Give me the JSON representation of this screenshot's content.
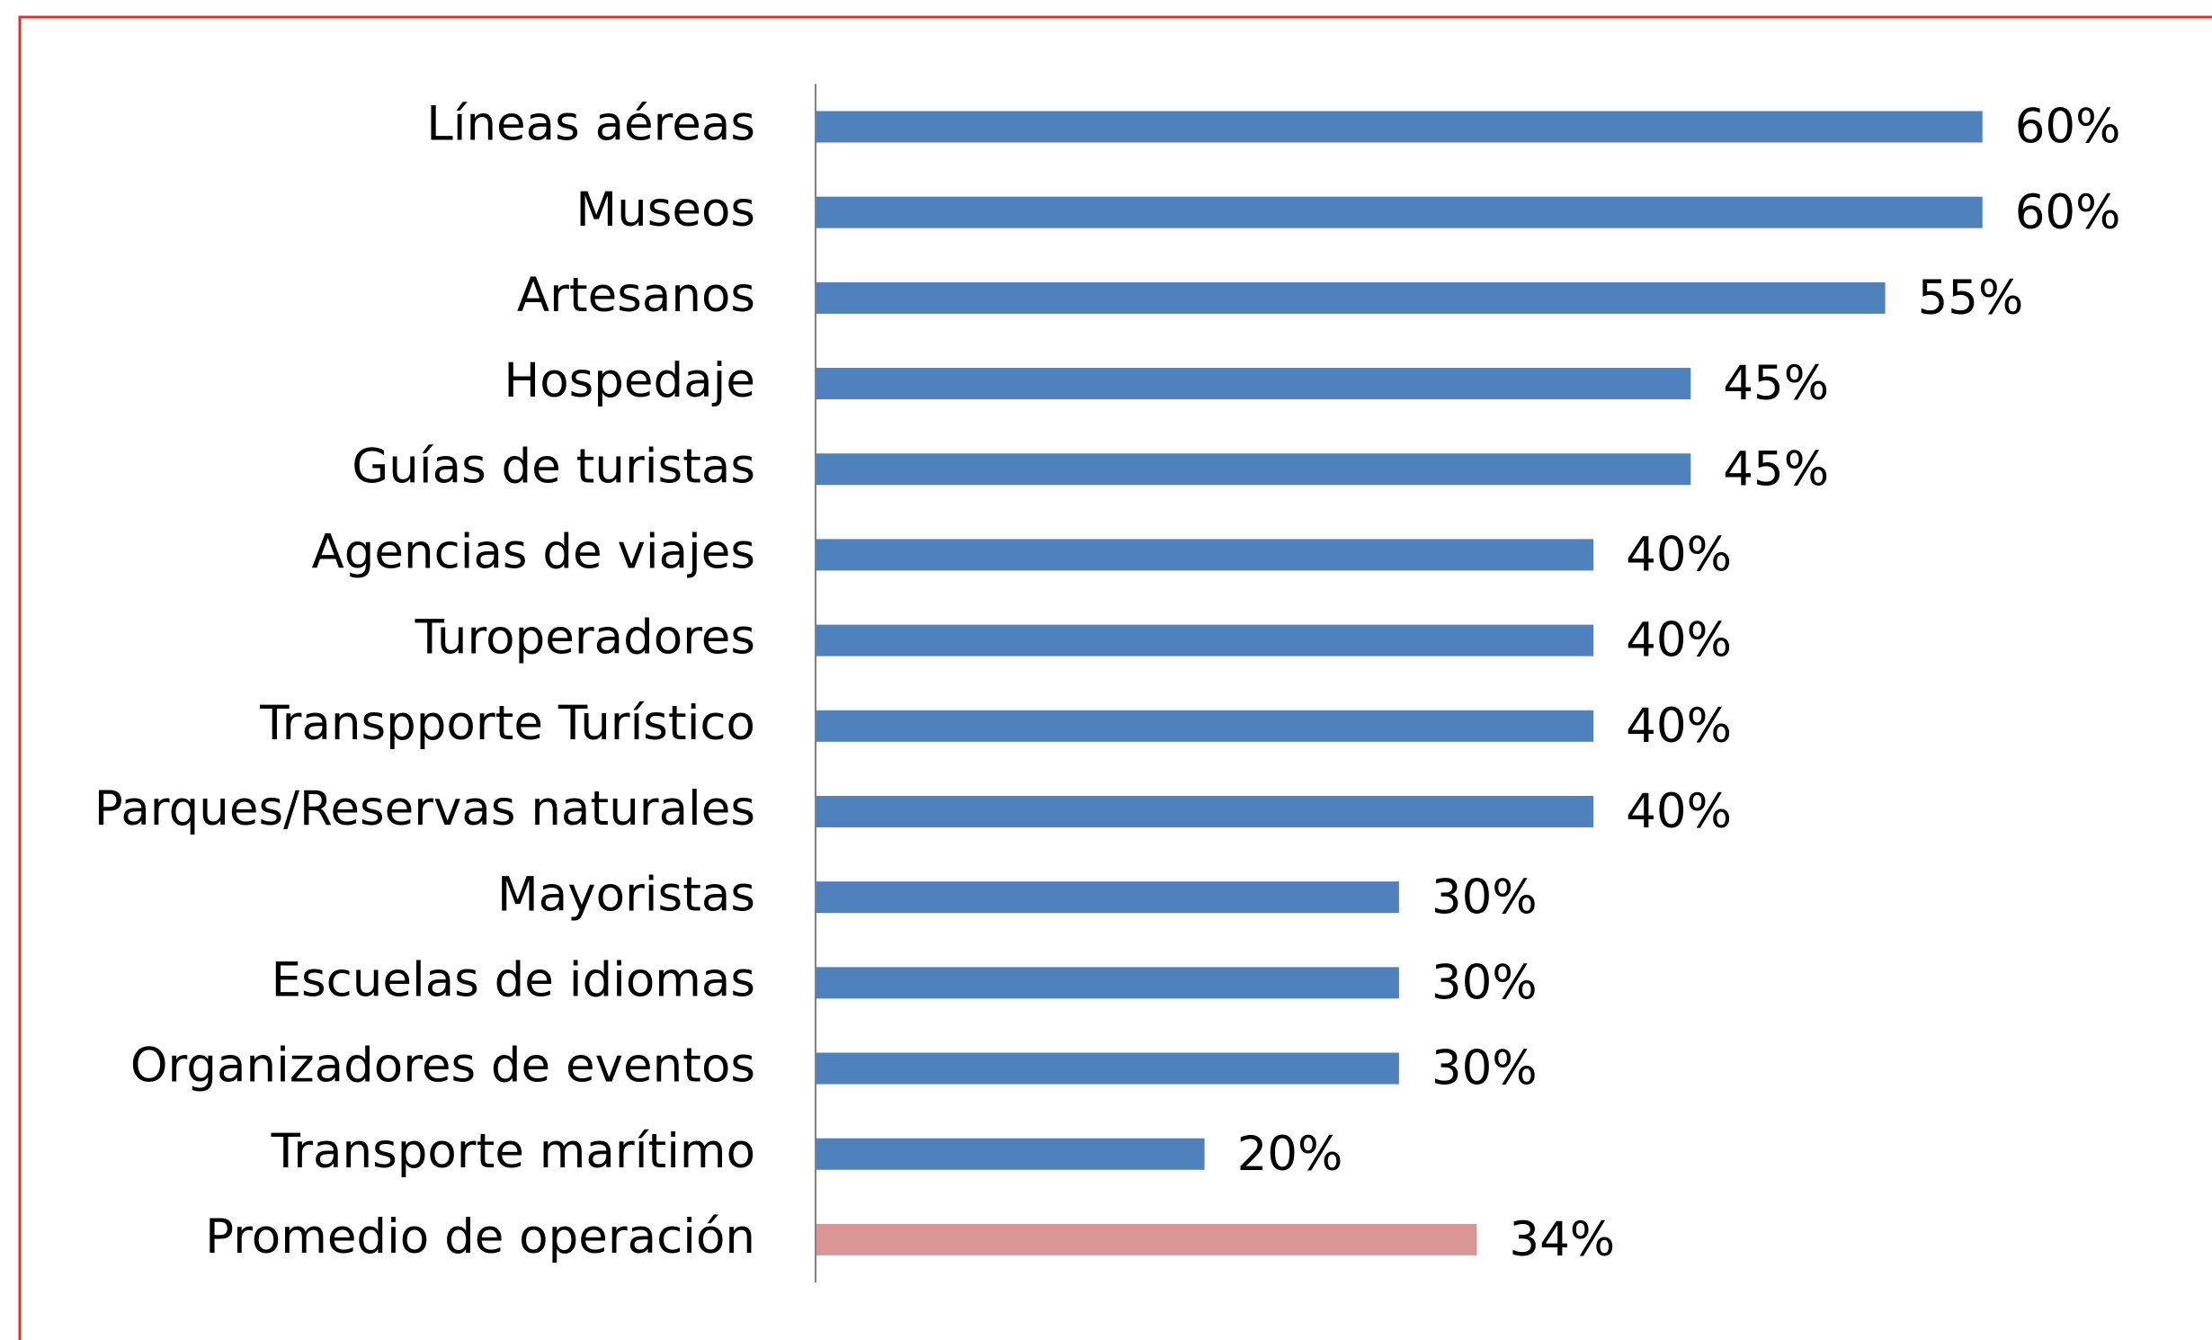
{
  "chart_data": {
    "type": "barh",
    "categories": [
      "Líneas aéreas",
      "Museos",
      "Artesanos",
      "Hospedaje",
      "Guías de turistas",
      "Agencias de viajes",
      "Turoperadores",
      "Transpporte Turístico",
      "Parques/Reservas naturales",
      "Mayoristas",
      "Escuelas de idiomas",
      "Organizadores de eventos",
      "Transporte marítimo",
      "Promedio de operación"
    ],
    "values": [
      60,
      60,
      55,
      45,
      45,
      40,
      40,
      40,
      40,
      30,
      30,
      30,
      20,
      34
    ],
    "value_labels": [
      "60%",
      "60%",
      "55%",
      "45%",
      "45%",
      "40%",
      "40%",
      "40%",
      "40%",
      "30%",
      "30%",
      "30%",
      "20%",
      "34%"
    ],
    "colors": [
      "#4f81bd",
      "#4f81bd",
      "#4f81bd",
      "#4f81bd",
      "#4f81bd",
      "#4f81bd",
      "#4f81bd",
      "#4f81bd",
      "#4f81bd",
      "#4f81bd",
      "#4f81bd",
      "#4f81bd",
      "#4f81bd",
      "#d99694"
    ],
    "xlim": [
      0,
      70
    ]
  }
}
